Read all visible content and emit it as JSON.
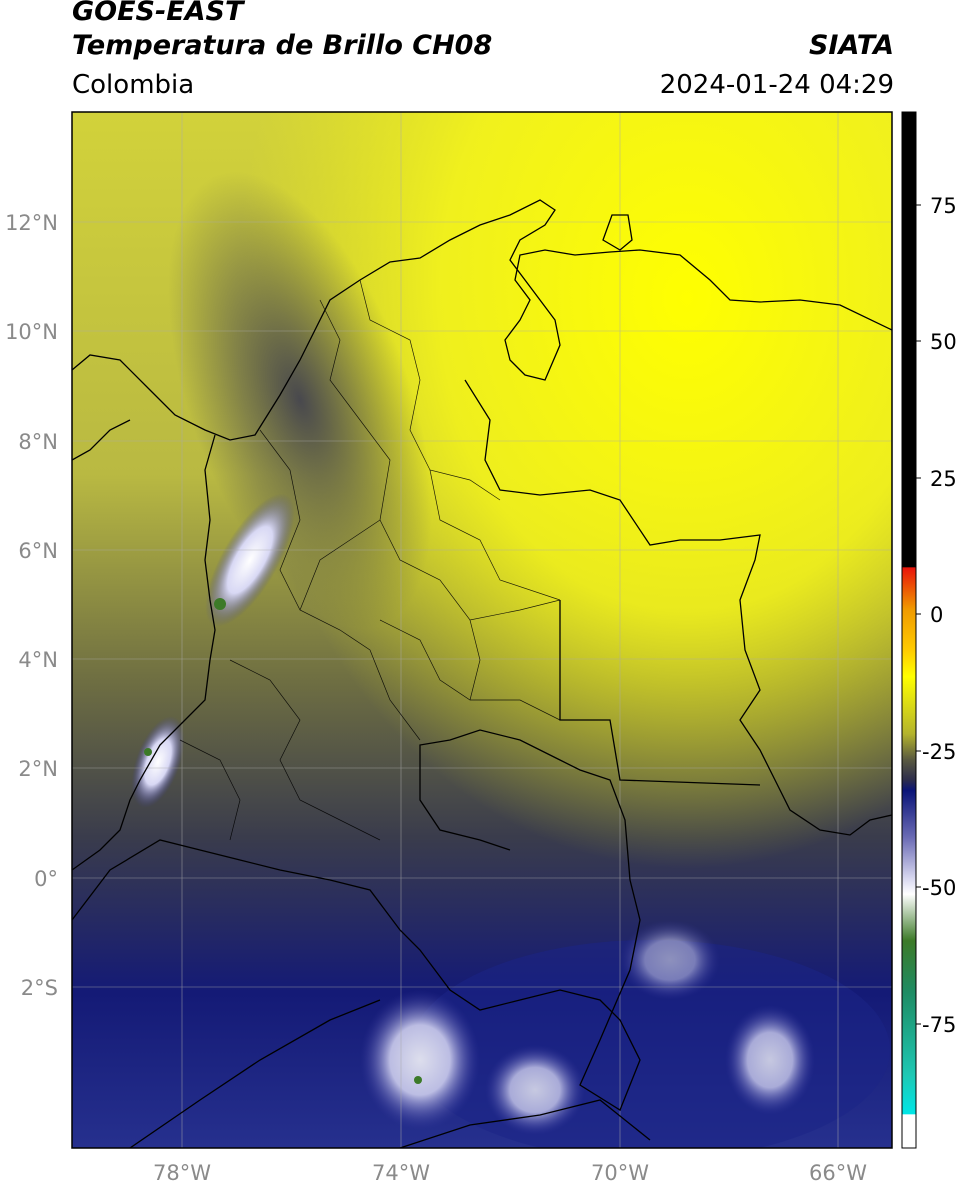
{
  "header": {
    "satellite": "GOES-EAST",
    "product": "Temperatura de Brillo CH08",
    "org": "SIATA",
    "region": "Colombia",
    "timestamp": "2024-01-24 04:29"
  },
  "map": {
    "lat_ticks": [
      "12°N",
      "10°N",
      "8°N",
      "6°N",
      "4°N",
      "2°N",
      "0°",
      "2°S"
    ],
    "lon_ticks": [
      "78°W",
      "74°W",
      "70°W",
      "66°W"
    ]
  },
  "colorbar": {
    "ticks": [
      "75",
      "50",
      "25",
      "0",
      "-25",
      "-50",
      "-75"
    ],
    "colors": {
      "black": "#000000",
      "red": "#e8140a",
      "orange": "#f09a00",
      "yellow": "#ffff00",
      "olive": "#8f8f2a",
      "gray": "#3c3c48",
      "navy": "#0a1478",
      "lavender": "#c8c8ee",
      "white": "#ffffff",
      "green": "#3c7a28",
      "teal": "#1ec8b4",
      "cyan": "#00e6e6"
    }
  }
}
